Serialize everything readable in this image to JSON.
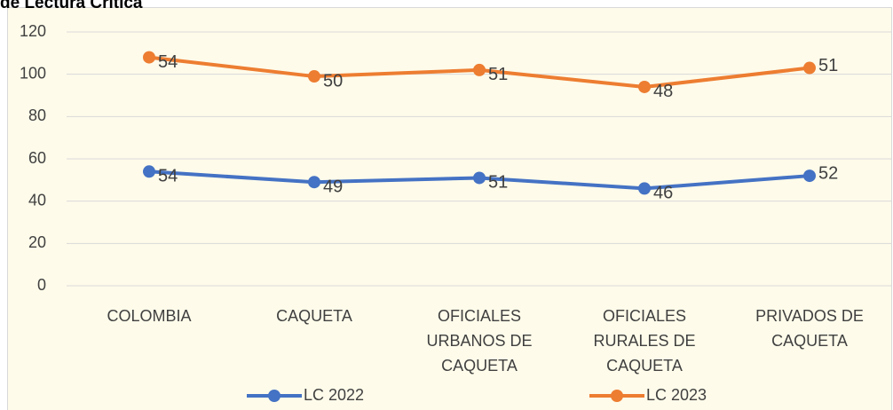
{
  "chart_data": {
    "type": "line",
    "stacked": true,
    "title": "de Lectura Crítica",
    "categories": [
      "COLOMBIA",
      "CAQUETA",
      "OFICIALES URBANOS DE CAQUETA",
      "OFICIALES RURALES DE CAQUETA",
      "PRIVADOS DE CAQUETA"
    ],
    "series": [
      {
        "name": "LC 2022",
        "color": "#4472c4",
        "values": [
          54,
          49,
          51,
          46,
          52
        ]
      },
      {
        "name": "LC 2023",
        "color": "#ed7d31",
        "values": [
          54,
          50,
          51,
          48,
          51
        ]
      }
    ],
    "ylim": [
      0,
      120
    ],
    "yticks": [
      0,
      20,
      40,
      60,
      80,
      100,
      120
    ],
    "grid": true,
    "legend": "bottom"
  }
}
